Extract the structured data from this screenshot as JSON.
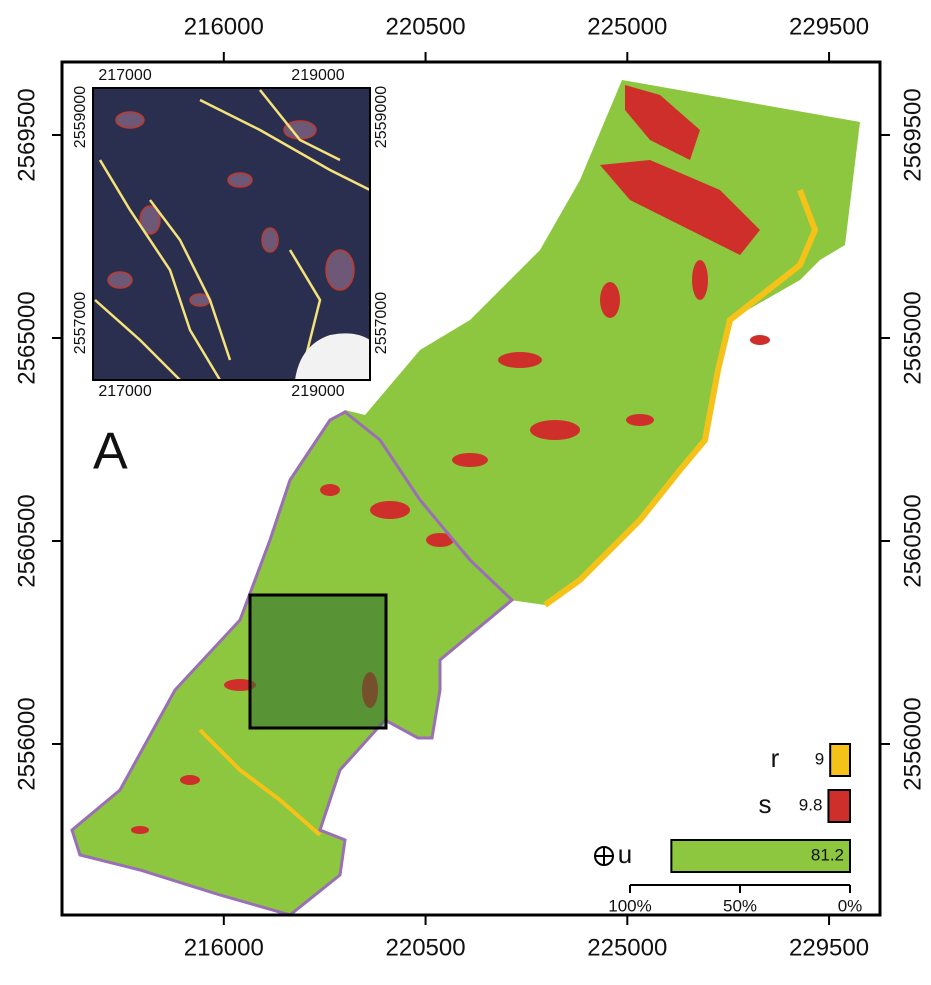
{
  "map": {
    "label": "A",
    "xlim": [
      212391,
      230636
    ],
    "xticks": [
      216000,
      220500,
      225000,
      229500
    ],
    "ylim": [
      2552209,
      2571118
    ],
    "yticks": [
      2569500,
      2565000,
      2560500,
      2556000
    ]
  },
  "inset": {
    "xlim": [
      216668,
      219539
    ],
    "xticks": [
      217000,
      219000
    ],
    "ylim": [
      2556447,
      2559282
    ],
    "yticks": [
      2559000,
      2557000
    ]
  },
  "legend": {
    "items": [
      {
        "name": "r",
        "value": 9,
        "color": "#f5c21a"
      },
      {
        "name": "s",
        "value": 9.8,
        "color": "#cf2f2a"
      },
      {
        "name": "u",
        "value": 81.2,
        "color": "#8dc63f"
      }
    ],
    "xlim": [
      100,
      0
    ],
    "scale": [
      {
        "value": 100,
        "label": "100%"
      },
      {
        "value": 50,
        "label": "50%"
      },
      {
        "value": 0,
        "label": "0%"
      }
    ]
  }
}
